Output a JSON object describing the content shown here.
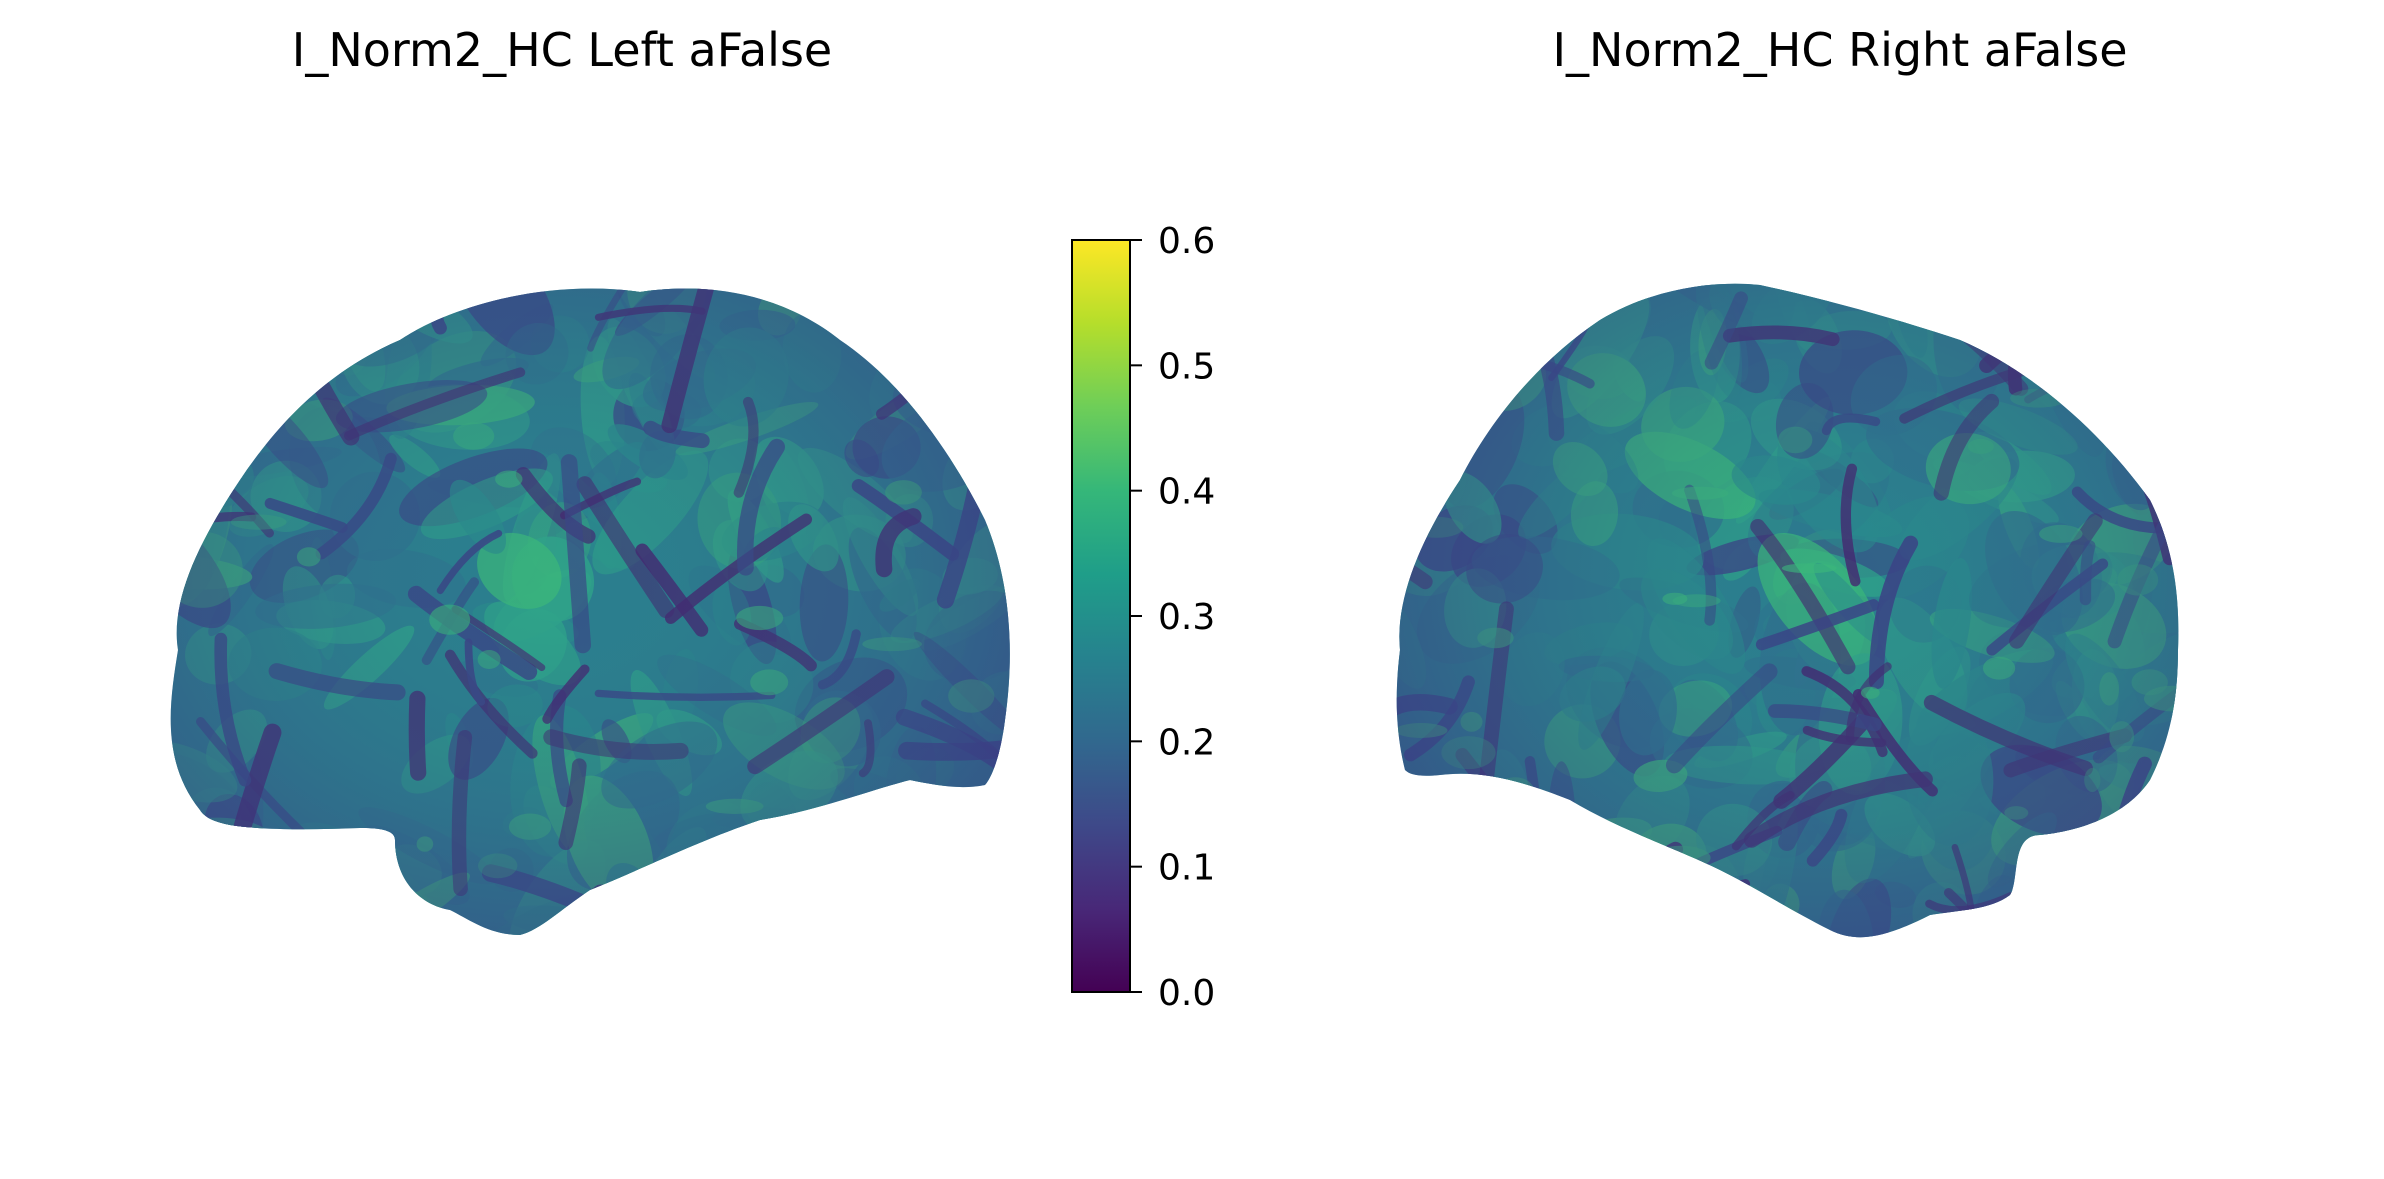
{
  "panels": {
    "left": {
      "title": "I_Norm2_HC Left aFalse",
      "view": "left lateral hemisphere surface"
    },
    "right": {
      "title": "I_Norm2_HC Right aFalse",
      "view": "right lateral hemisphere surface"
    }
  },
  "colorbar": {
    "colormap": "viridis",
    "min": 0.0,
    "max": 0.6,
    "ticks": [
      "0.0",
      "0.1",
      "0.2",
      "0.3",
      "0.4",
      "0.5",
      "0.6"
    ],
    "stops": [
      "#440154",
      "#482878",
      "#3e4989",
      "#31688e",
      "#26828e",
      "#1f9e89",
      "#35b779",
      "#6ece58",
      "#b5de2b",
      "#fde725"
    ]
  },
  "surface_colors": {
    "base": "#2f6f8e",
    "mid": "#2a8a8c",
    "light": "#2fa489",
    "bright": "#3cb87a",
    "dark": "#3b3f85",
    "darker": "#46206e"
  }
}
